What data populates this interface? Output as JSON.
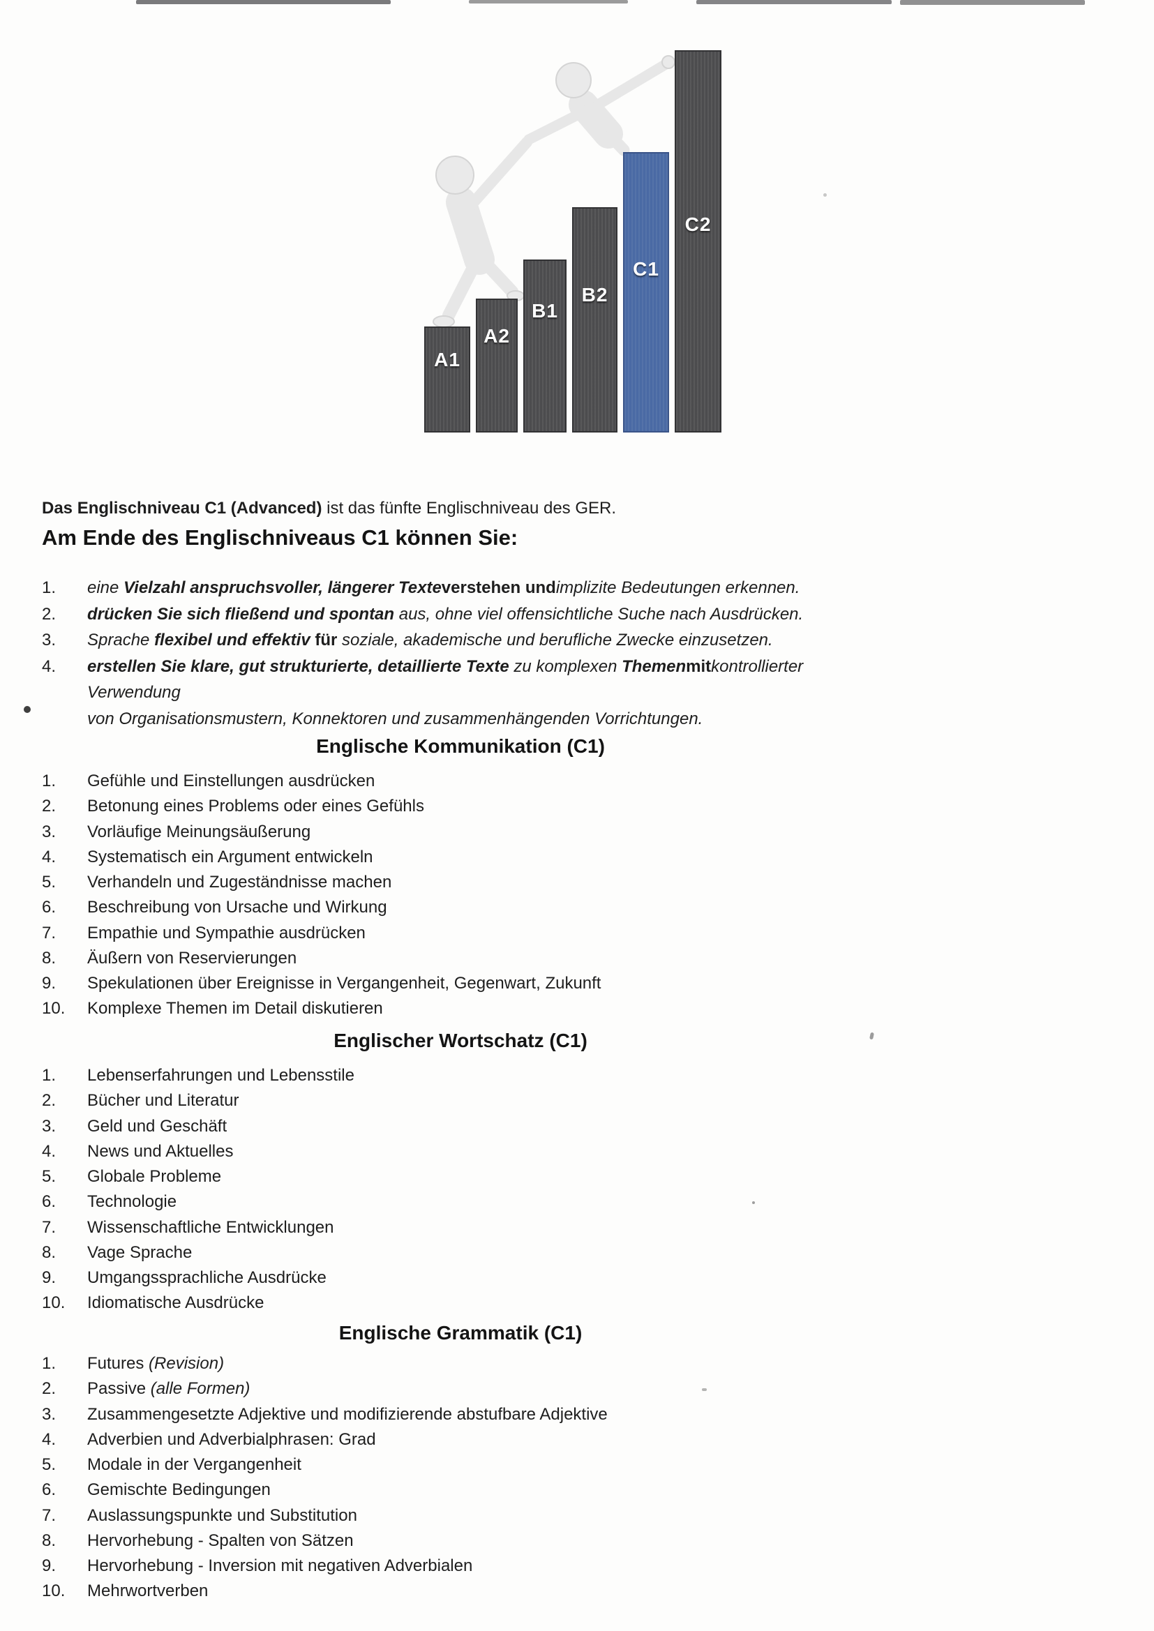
{
  "hero": {
    "bars": [
      {
        "label": "A1",
        "color": "#4c4c4e"
      },
      {
        "label": "A2",
        "color": "#4c4c4e"
      },
      {
        "label": "B1",
        "color": "#4c4c4e"
      },
      {
        "label": "B2",
        "color": "#4c4c4e"
      },
      {
        "label": "C1",
        "color": "#4a6aa4"
      },
      {
        "label": "C2",
        "color": "#4c4c4e"
      }
    ],
    "highlighted_level": "C1",
    "bar_color": "#4c4c4e",
    "highlight_color": "#4a6aa4",
    "label_color": "#ffffff",
    "figures": [
      "climbing-person",
      "helping-person"
    ]
  },
  "intro": {
    "bold": "Das Englischniveau C1 (Advanced)",
    "rest": " ist das fünfte Englischniveau des GER."
  },
  "can_do": {
    "heading": "Am Ende des Englischniveaus C1 können Sie:",
    "items": [
      {
        "n": "1.",
        "segments": [
          [
            "eine  ",
            "i"
          ],
          [
            "Vielzahl anspruchsvoller, längerer Texte",
            "bi"
          ],
          [
            "verstehen und",
            "u"
          ],
          [
            "implizite Bedeutungen erkennen.",
            "i"
          ]
        ]
      },
      {
        "n": "2.",
        "segments": [
          [
            "drücken Sie sich fließend und spontan",
            "bi"
          ],
          [
            " aus, ohne viel offensichtliche Suche nach Ausdrücken.",
            "i"
          ]
        ]
      },
      {
        "n": "3.",
        "segments": [
          [
            "Sprache  ",
            "i"
          ],
          [
            "flexibel und effektiv",
            "bi"
          ],
          [
            " für ",
            "u"
          ],
          [
            "soziale, akademische und berufliche Zwecke einzusetzen.",
            "i"
          ]
        ]
      },
      {
        "n": "4.",
        "segments": [
          [
            "erstellen Sie klare, gut strukturierte, detaillierte Texte",
            "bi"
          ],
          [
            " zu komplexen ",
            "i"
          ],
          [
            "Themen",
            "bi"
          ],
          [
            "mit",
            "u"
          ],
          [
            "kontrollierter Verwendung",
            "i"
          ]
        ],
        "segments2": [
          [
            "von Organisationsmustern, Konnektoren und zusammenhängenden Vorrichtungen.",
            "i"
          ]
        ]
      }
    ]
  },
  "sections": [
    {
      "title": "Englische Kommunikation (C1)",
      "items": [
        {
          "n": "1.",
          "t": "Gefühle und Einstellungen ausdrücken"
        },
        {
          "n": "2.",
          "t": "Betonung eines Problems oder eines Gefühls"
        },
        {
          "n": "3.",
          "t": "Vorläufige Meinungsäußerung"
        },
        {
          "n": "4.",
          "t": "Systematisch ein Argument entwickeln"
        },
        {
          "n": "5.",
          "t": "Verhandeln und Zugeständnisse machen"
        },
        {
          "n": "6.",
          "t": "Beschreibung von Ursache und Wirkung"
        },
        {
          "n": "7.",
          "t": "Empathie und Sympathie ausdrücken"
        },
        {
          "n": "8.",
          "t": "Äußern von Reservierungen"
        },
        {
          "n": "9.",
          "t": "Spekulationen über Ereignisse in Vergangenheit, Gegenwart, Zukunft"
        },
        {
          "n": "10.",
          "t": "Komplexe Themen im Detail diskutieren"
        }
      ]
    },
    {
      "title": "Englischer Wortschatz (C1)",
      "items": [
        {
          "n": "1.",
          "t": "Lebenserfahrungen und Lebensstile"
        },
        {
          "n": "2.",
          "t": "Bücher und Literatur"
        },
        {
          "n": "3.",
          "t": "Geld und Geschäft"
        },
        {
          "n": "4.",
          "t": "News und Aktuelles"
        },
        {
          "n": "5.",
          "t": "Globale Probleme"
        },
        {
          "n": "6.",
          "t": "Technologie"
        },
        {
          "n": "7.",
          "t": "Wissenschaftliche Entwicklungen"
        },
        {
          "n": "8.",
          "t": "Vage Sprache"
        },
        {
          "n": "9.",
          "t": "Umgangssprachliche Ausdrücke"
        },
        {
          "n": "10.",
          "t": "Idiomatische Ausdrücke"
        }
      ]
    },
    {
      "title": "Englische Grammatik (C1)",
      "items": [
        {
          "n": "1.",
          "t": "Futures ",
          "i": "(Revision)"
        },
        {
          "n": "2.",
          "t": "Passive ",
          "i": "(alle Formen)"
        },
        {
          "n": "3.",
          "t": "Zusammengesetzte Adjektive und modifizierende abstufbare Adjektive"
        },
        {
          "n": "4.",
          "t": "Adverbien und Adverbialphrasen: Grad"
        },
        {
          "n": "5.",
          "t": "Modale in der Vergangenheit"
        },
        {
          "n": "6.",
          "t": "Gemischte Bedingungen"
        },
        {
          "n": "7.",
          "t": "Auslassungspunkte und Substitution"
        },
        {
          "n": "8.",
          "t": "Hervorhebung - Spalten von Sätzen"
        },
        {
          "n": "9.",
          "t": "Hervorhebung - Inversion mit negativen Adverbialen"
        },
        {
          "n": "10.",
          "t": "Mehrwortverben"
        }
      ]
    }
  ]
}
